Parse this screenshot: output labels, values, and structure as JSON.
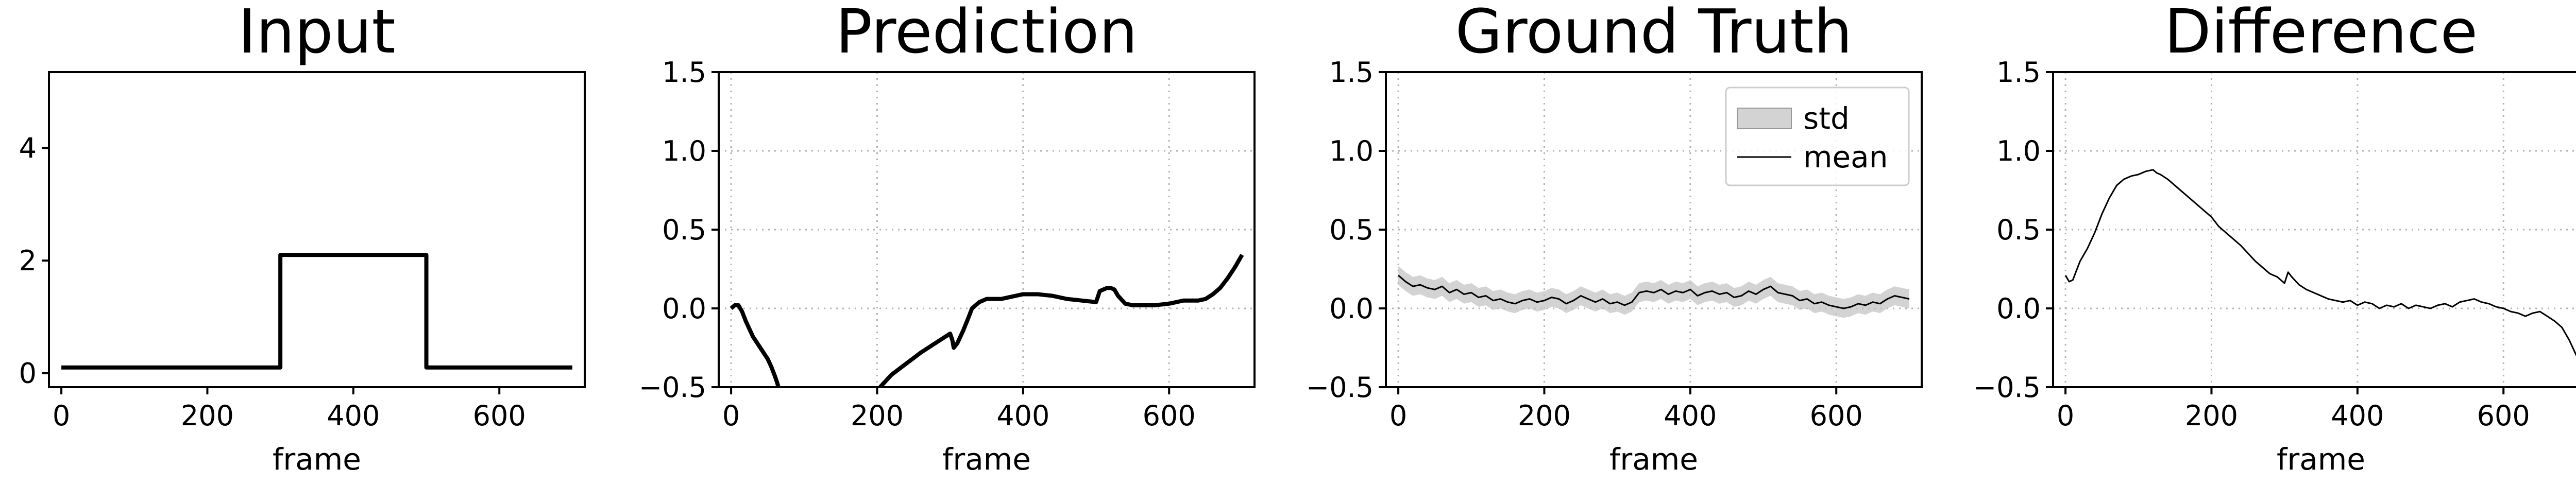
{
  "chart_data": [
    {
      "type": "line",
      "title": "Input",
      "xlabel": "frame",
      "xlim": [
        -17,
        717
      ],
      "ylim": [
        -0.25,
        5.35
      ],
      "xticks": [
        "0",
        "200",
        "400",
        "600"
      ],
      "yticks": [
        "0",
        "2",
        "4"
      ],
      "grid": false,
      "series": [
        {
          "x": [
            0,
            300,
            300,
            500,
            500,
            700
          ],
          "y": [
            0.1,
            0.1,
            2.1,
            2.1,
            0.1,
            0.1
          ]
        }
      ]
    },
    {
      "type": "line",
      "title": "Prediction",
      "xlabel": "frame",
      "xlim": [
        -17,
        717
      ],
      "ylim": [
        -0.5,
        1.5
      ],
      "xticks": [
        "0",
        "200",
        "400",
        "600"
      ],
      "yticks": [
        "−0.5",
        "0.0",
        "0.5",
        "1.0",
        "1.5"
      ],
      "grid": true,
      "series": [
        {
          "x": [
            0,
            5,
            10,
            15,
            20,
            30,
            40,
            50,
            55,
            60,
            63,
            66
          ],
          "y": [
            0.0,
            0.02,
            0.02,
            -0.02,
            -0.08,
            -0.18,
            -0.25,
            -0.32,
            -0.37,
            -0.43,
            -0.47,
            -0.52
          ]
        },
        {
          "x": [
            200,
            210,
            220,
            240,
            260,
            280,
            300,
            303,
            305,
            310,
            318,
            325,
            330,
            340,
            350,
            360,
            370,
            380,
            390,
            400,
            410,
            420,
            440,
            460,
            480,
            500,
            505,
            510,
            515,
            520,
            525,
            530,
            540,
            550,
            560,
            580,
            600,
            620,
            640,
            650,
            660,
            670,
            680,
            690,
            700
          ],
          "y": [
            -0.52,
            -0.47,
            -0.42,
            -0.35,
            -0.28,
            -0.22,
            -0.16,
            -0.2,
            -0.25,
            -0.22,
            -0.14,
            -0.06,
            0.0,
            0.04,
            0.06,
            0.06,
            0.06,
            0.07,
            0.08,
            0.09,
            0.09,
            0.09,
            0.08,
            0.06,
            0.05,
            0.04,
            0.11,
            0.12,
            0.13,
            0.13,
            0.12,
            0.08,
            0.03,
            0.02,
            0.02,
            0.02,
            0.03,
            0.05,
            0.05,
            0.06,
            0.09,
            0.13,
            0.19,
            0.26,
            0.34
          ]
        }
      ]
    },
    {
      "type": "area",
      "title": "Ground Truth",
      "xlabel": "frame",
      "xlim": [
        -17,
        717
      ],
      "ylim": [
        -0.5,
        1.5
      ],
      "xticks": [
        "0",
        "200",
        "400",
        "600"
      ],
      "yticks": [
        "−0.5",
        "0.0",
        "0.5",
        "1.0",
        "1.5"
      ],
      "grid": true,
      "legend": "upper-right",
      "series": [
        {
          "name": "mean",
          "x": [
            0,
            10,
            20,
            30,
            40,
            50,
            60,
            70,
            80,
            90,
            100,
            110,
            120,
            130,
            140,
            150,
            160,
            170,
            180,
            190,
            200,
            210,
            220,
            230,
            240,
            250,
            260,
            270,
            280,
            290,
            300,
            310,
            320,
            330,
            340,
            350,
            360,
            370,
            380,
            390,
            400,
            410,
            420,
            430,
            440,
            450,
            460,
            470,
            480,
            490,
            500,
            510,
            520,
            530,
            540,
            550,
            560,
            570,
            580,
            590,
            600,
            610,
            620,
            630,
            640,
            650,
            660,
            670,
            680,
            690,
            700
          ],
          "y": [
            0.21,
            0.17,
            0.14,
            0.15,
            0.13,
            0.12,
            0.14,
            0.1,
            0.12,
            0.09,
            0.1,
            0.07,
            0.08,
            0.05,
            0.06,
            0.04,
            0.03,
            0.05,
            0.06,
            0.04,
            0.05,
            0.07,
            0.06,
            0.03,
            0.05,
            0.08,
            0.06,
            0.04,
            0.06,
            0.03,
            0.04,
            0.02,
            0.04,
            0.1,
            0.11,
            0.1,
            0.12,
            0.09,
            0.11,
            0.1,
            0.12,
            0.08,
            0.1,
            0.11,
            0.09,
            0.1,
            0.07,
            0.08,
            0.11,
            0.09,
            0.12,
            0.14,
            0.1,
            0.09,
            0.08,
            0.05,
            0.06,
            0.03,
            0.04,
            0.02,
            0.01,
            0.0,
            0.01,
            0.03,
            0.02,
            0.04,
            0.03,
            0.06,
            0.08,
            0.07,
            0.06
          ]
        },
        {
          "name": "std",
          "spread": 0.06
        }
      ]
    },
    {
      "type": "line",
      "title": "Difference",
      "xlabel": "frame",
      "xlim": [
        -17,
        717
      ],
      "ylim": [
        -0.5,
        1.5
      ],
      "xticks": [
        "0",
        "200",
        "400",
        "600"
      ],
      "yticks": [
        "−0.5",
        "0.0",
        "0.5",
        "1.0",
        "1.5"
      ],
      "grid": true,
      "series": [
        {
          "x": [
            0,
            5,
            10,
            15,
            20,
            30,
            40,
            50,
            60,
            70,
            80,
            90,
            100,
            110,
            120,
            125,
            130,
            140,
            150,
            160,
            170,
            180,
            190,
            200,
            210,
            220,
            230,
            240,
            250,
            260,
            270,
            280,
            290,
            300,
            305,
            310,
            320,
            330,
            340,
            350,
            360,
            370,
            380,
            390,
            400,
            410,
            420,
            430,
            440,
            450,
            460,
            470,
            480,
            490,
            500,
            510,
            520,
            530,
            540,
            550,
            560,
            570,
            580,
            590,
            600,
            610,
            620,
            630,
            640,
            650,
            660,
            670,
            680,
            690,
            700
          ],
          "y": [
            0.21,
            0.17,
            0.18,
            0.24,
            0.3,
            0.38,
            0.48,
            0.6,
            0.7,
            0.78,
            0.82,
            0.84,
            0.85,
            0.87,
            0.88,
            0.86,
            0.85,
            0.82,
            0.78,
            0.74,
            0.7,
            0.66,
            0.62,
            0.58,
            0.52,
            0.48,
            0.44,
            0.4,
            0.35,
            0.3,
            0.26,
            0.22,
            0.2,
            0.16,
            0.23,
            0.2,
            0.15,
            0.12,
            0.1,
            0.08,
            0.06,
            0.05,
            0.04,
            0.05,
            0.02,
            0.04,
            0.03,
            0.0,
            0.02,
            0.01,
            0.03,
            0.0,
            0.02,
            0.01,
            0.0,
            0.02,
            0.03,
            0.01,
            0.04,
            0.05,
            0.06,
            0.04,
            0.03,
            0.01,
            0.0,
            -0.02,
            -0.03,
            -0.05,
            -0.03,
            -0.02,
            -0.05,
            -0.08,
            -0.12,
            -0.2,
            -0.3
          ]
        }
      ]
    }
  ]
}
